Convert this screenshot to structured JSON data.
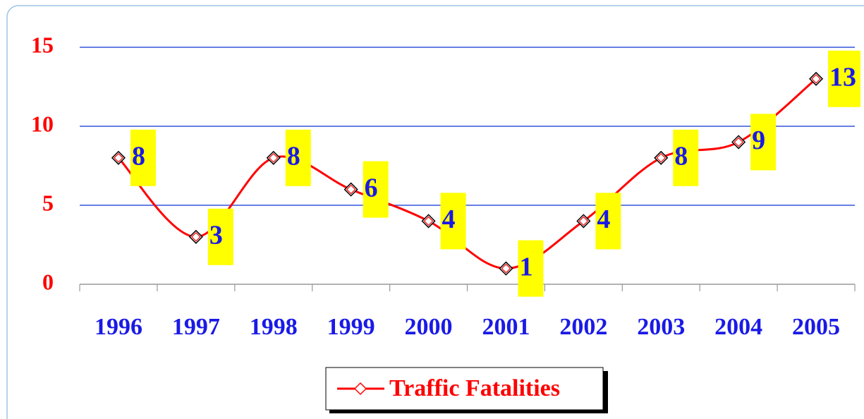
{
  "chart_data": {
    "type": "line",
    "categories": [
      "1996",
      "1997",
      "1998",
      "1999",
      "2000",
      "2001",
      "2002",
      "2003",
      "2004",
      "2005"
    ],
    "series": [
      {
        "name": "Traffic Fatalities",
        "color": "#ff0000",
        "values": [
          8,
          3,
          8,
          6,
          4,
          1,
          4,
          8,
          9,
          13
        ]
      }
    ],
    "ylim": [
      0,
      15
    ],
    "yticks": [
      0,
      5,
      10,
      15
    ],
    "grid": true,
    "legend": "bottom",
    "smooth": true
  }
}
